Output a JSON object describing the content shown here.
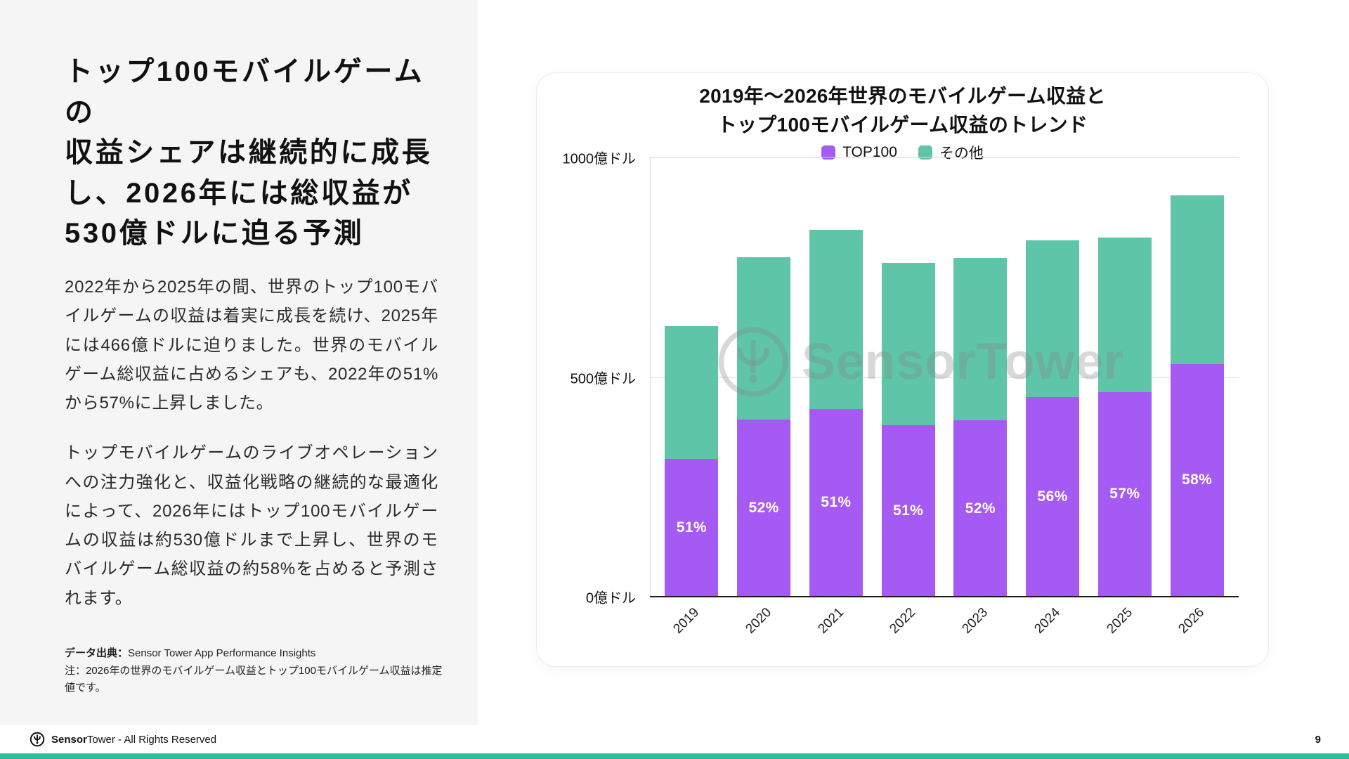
{
  "left_panel": {
    "heading_lines": [
      "トップ100モバイルゲームの",
      "収益シェアは継続的に成長",
      "し、2026年には総収益が",
      "530億ドルに迫る予測"
    ],
    "paragraph_1": "2022年から2025年の間、世界のトップ100モバイルゲームの収益は着実に成長を続け、2025年には466億ドルに迫りました。世界のモバイルゲーム総収益に占めるシェアも、2022年の51%から57%に上昇しました。",
    "paragraph_2": "トップモバイルゲームのライブオペレーションへの注力強化と、収益化戦略の継続的な最適化によって、2026年にはトップ100モバイルゲームの収益は約530億ドルまで上昇し、世界のモバイルゲーム総収益の約58%を占めると予測されます。",
    "source_label": "データ出典：",
    "source_text": "Sensor Tower App Performance Insights",
    "note": "注：2026年の世界のモバイルゲーム収益とトップ100モバイルゲーム収益は推定値です。"
  },
  "chart_card": {
    "title_line_1": "2019年〜2026年世界のモバイルゲーム収益と",
    "title_line_2": "トップ100モバイルゲーム収益のトレンド"
  },
  "chart_data": {
    "type": "bar",
    "stacked": true,
    "title": "2019年〜2026年世界のモバイルゲーム収益とトップ100モバイルゲーム収益のトレンド",
    "categories": [
      "2019",
      "2020",
      "2021",
      "2022",
      "2023",
      "2024",
      "2025",
      "2026"
    ],
    "series": [
      {
        "name": "TOP100",
        "color": "#A55AF3",
        "values": [
          313,
          403,
          428,
          390,
          401,
          455,
          466,
          530
        ]
      },
      {
        "name": "その他",
        "color": "#5EC5A8",
        "values": [
          303,
          370,
          408,
          370,
          370,
          357,
          352,
          384
        ]
      }
    ],
    "bar_labels": [
      "51%",
      "52%",
      "51%",
      "51%",
      "52%",
      "56%",
      "57%",
      "58%"
    ],
    "unit": "億ドル",
    "ylim": [
      0,
      1000
    ],
    "yticks": [
      {
        "value": 0,
        "label": "0億ドル"
      },
      {
        "value": 500,
        "label": "500億ドル"
      },
      {
        "value": 1000,
        "label": "1000億ドル"
      }
    ],
    "legend_position": "top",
    "grid": true,
    "watermark": "SensorTower"
  },
  "footer": {
    "brand_bold": "Sensor",
    "brand_light": "Tower",
    "rights_text": " - All Rights Reserved",
    "page_number": "9"
  },
  "colors": {
    "top100": "#A55AF3",
    "other": "#5EC5A8",
    "accent_strip": "#2ABF9F",
    "left_panel_bg": "#F5F5F6"
  }
}
